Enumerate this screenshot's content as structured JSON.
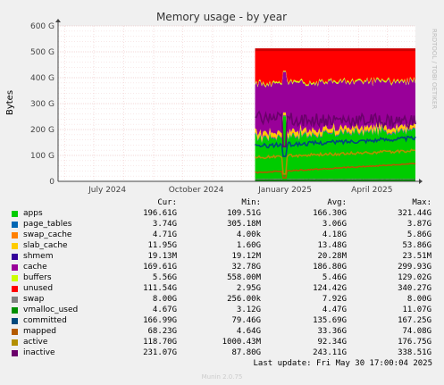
{
  "chart_data": {
    "type": "area",
    "title": "Memory usage - by year",
    "ylabel": "Bytes",
    "side_label": "RRDTOOL / TOBI OETIKER",
    "y_ticks": [
      "0",
      "100 G",
      "200 G",
      "300 G",
      "400 G",
      "500 G",
      "600 G"
    ],
    "ylim": [
      0,
      600
    ],
    "x_ticks": [
      "July 2024",
      "October 2024",
      "January 2025",
      "April 2025"
    ],
    "xlim": [
      "2024-05-25",
      "2025-05-30"
    ],
    "data_start": "2024-12-15",
    "grid": true,
    "columns": [
      "Cur:",
      "Min:",
      "Avg:",
      "Max:"
    ],
    "series": [
      {
        "name": "apps",
        "color": "#00cc00",
        "cur": "196.61G",
        "min": "109.51G",
        "avg": "166.30G",
        "max": "321.44G"
      },
      {
        "name": "page_tables",
        "color": "#0066b3",
        "cur": "3.74G",
        "min": "305.18M",
        "avg": "3.06G",
        "max": "3.87G"
      },
      {
        "name": "swap_cache",
        "color": "#ff8000",
        "cur": "4.71G",
        "min": "4.00k",
        "avg": "4.18G",
        "max": "5.86G"
      },
      {
        "name": "slab_cache",
        "color": "#ffcc00",
        "cur": "11.95G",
        "min": "1.60G",
        "avg": "13.48G",
        "max": "53.86G"
      },
      {
        "name": "shmem",
        "color": "#330099",
        "cur": "19.13M",
        "min": "19.12M",
        "avg": "20.28M",
        "max": "23.51M"
      },
      {
        "name": "cache",
        "color": "#990099",
        "cur": "169.61G",
        "min": "32.78G",
        "avg": "186.80G",
        "max": "299.93G"
      },
      {
        "name": "buffers",
        "color": "#ccff00",
        "cur": "5.56G",
        "min": "558.00M",
        "avg": "5.46G",
        "max": "129.02G"
      },
      {
        "name": "unused",
        "color": "#ff0000",
        "cur": "111.54G",
        "min": "2.95G",
        "avg": "124.42G",
        "max": "340.27G"
      },
      {
        "name": "swap",
        "color": "#808080",
        "cur": "8.00G",
        "min": "256.00k",
        "avg": "7.92G",
        "max": "8.00G"
      },
      {
        "name": "vmalloc_used",
        "color": "#008f00",
        "cur": "4.67G",
        "min": "3.12G",
        "avg": "4.47G",
        "max": "11.07G"
      },
      {
        "name": "committed",
        "color": "#00487d",
        "cur": "166.99G",
        "min": "79.46G",
        "avg": "135.69G",
        "max": "167.25G"
      },
      {
        "name": "mapped",
        "color": "#b35a00",
        "cur": "68.23G",
        "min": "4.64G",
        "avg": "33.36G",
        "max": "74.08G"
      },
      {
        "name": "active",
        "color": "#b38f00",
        "cur": "118.70G",
        "min": "1000.43M",
        "avg": "92.34G",
        "max": "176.75G"
      },
      {
        "name": "inactive",
        "color": "#6b006b",
        "cur": "231.07G",
        "min": "87.80G",
        "avg": "243.11G",
        "max": "338.51G"
      }
    ]
  },
  "last_update": "Last update: Fri May 30 17:00:04 2025",
  "footer": "Munin 2.0.75"
}
